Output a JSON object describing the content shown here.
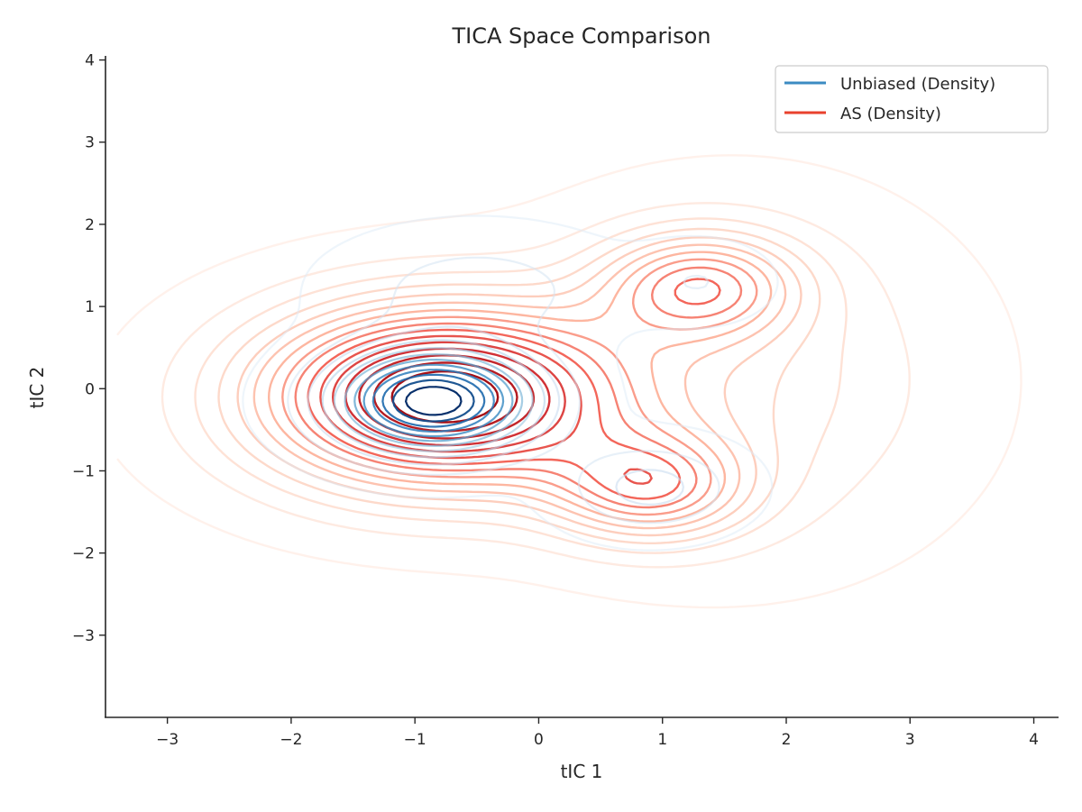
{
  "chart_data": {
    "type": "contour",
    "title": "TICA Space Comparison",
    "xlabel": "tIC 1",
    "ylabel": "tIC 2",
    "xlim": [
      -3.5,
      4.2
    ],
    "ylim": [
      -4.0,
      4.05
    ],
    "xticks": [
      -3,
      -2,
      -1,
      0,
      1,
      2,
      3,
      4
    ],
    "yticks": [
      -3,
      -2,
      -1,
      0,
      1,
      2,
      3,
      4
    ],
    "xtick_labels": [
      "−3",
      "−2",
      "−1",
      "0",
      "1",
      "2",
      "3",
      "4"
    ],
    "ytick_labels": [
      "−3",
      "−2",
      "−1",
      "0",
      "1",
      "2",
      "3",
      "4"
    ],
    "grid": false,
    "legend_position": "top-right",
    "series": [
      {
        "name": "Unbiased (Density)",
        "kind": "kde-contours",
        "colormap": "Blues",
        "legend_color": "#3b8bc2",
        "modes": [
          {
            "center": [
              -0.85,
              -0.15
            ],
            "sigma": [
              0.55,
              0.42
            ],
            "weight": 1.0
          },
          {
            "center": [
              0.9,
              -1.2
            ],
            "sigma": [
              0.45,
              0.35
            ],
            "weight": 0.22
          },
          {
            "center": [
              1.3,
              1.3
            ],
            "sigma": [
              0.35,
              0.3
            ],
            "weight": 0.1
          },
          {
            "center": [
              -0.5,
              1.2
            ],
            "sigma": [
              0.7,
              0.45
            ],
            "weight": 0.15
          }
        ]
      },
      {
        "name": "AS (Density)",
        "kind": "kde-contours",
        "colormap": "Reds",
        "legend_color": "#e8412d",
        "modes": [
          {
            "center": [
              -0.8,
              -0.1
            ],
            "sigma": [
              1.0,
              0.75
            ],
            "weight": 1.0
          },
          {
            "center": [
              1.3,
              1.25
            ],
            "sigma": [
              0.55,
              0.45
            ],
            "weight": 0.45
          },
          {
            "center": [
              0.9,
              -1.2
            ],
            "sigma": [
              0.55,
              0.45
            ],
            "weight": 0.45
          },
          {
            "center": [
              1.6,
              0.1
            ],
            "sigma": [
              1.1,
              1.3
            ],
            "weight": 0.18
          }
        ]
      }
    ]
  }
}
